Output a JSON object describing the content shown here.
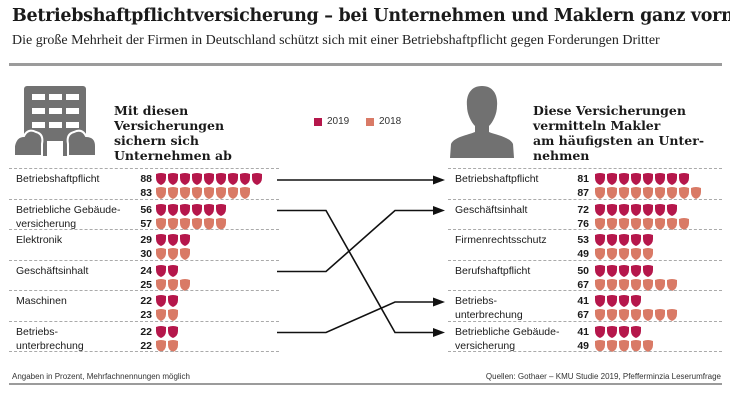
{
  "title": "Betriebshaftpflichtversicherung – bei Unternehmen und Maklern ganz vorn",
  "subtitle": "Die große Mehrheit der Firmen in Deutschland schützt sich mit einer Betriebshaftpflicht gegen Forderungen Dritter",
  "left_heading": [
    "Mit diesen",
    "Versicherungen",
    "sichern sich",
    "Unternehmen ab"
  ],
  "right_heading": [
    "Diese Versicherungen",
    "vermitteln Makler",
    "am häufigsten an Unter-",
    "nehmen"
  ],
  "icons": {
    "left": "office-building-icon",
    "right": "person-silhouette-icon",
    "marker": "shield-icon"
  },
  "colors": {
    "y2019": "#b5174b",
    "y2018": "#d97a66",
    "icon_gray": "#717171"
  },
  "footer_left": "Angaben in Prozent, Mehrfachnennungen möglich",
  "footer_right": "Quellen: Gothaer – KMU Studie 2019, Pfefferminzia Leserumfrage",
  "chart_data": {
    "type": "pictogram",
    "unit": "percent",
    "icon_value": 10,
    "legend": [
      {
        "label": "2019",
        "color": "#b5174b"
      },
      {
        "label": "2018",
        "color": "#d97a66"
      }
    ],
    "groups": [
      {
        "name": "unternehmen",
        "heading": "Mit diesen Versicherungen sichern sich Unternehmen ab",
        "rows": [
          {
            "label": [
              "Betriebshaftpflicht"
            ],
            "v2019": 88,
            "v2018": 83
          },
          {
            "label": [
              "Betriebliche Gebäude-",
              "versicherung"
            ],
            "v2019": 56,
            "v2018": 57
          },
          {
            "label": [
              "Elektronik"
            ],
            "v2019": 29,
            "v2018": 30
          },
          {
            "label": [
              "Geschäftsinhalt"
            ],
            "v2019": 24,
            "v2018": 25
          },
          {
            "label": [
              "Maschinen"
            ],
            "v2019": 22,
            "v2018": 23
          },
          {
            "label": [
              "Betriebs-",
              "unterbrechung"
            ],
            "v2019": 22,
            "v2018": 22
          }
        ]
      },
      {
        "name": "makler",
        "heading": "Diese Versicherungen vermitteln Makler am häufigsten an Unternehmen",
        "rows": [
          {
            "label": [
              "Betriebshaftpflicht"
            ],
            "v2019": 81,
            "v2018": 87
          },
          {
            "label": [
              "Geschäftsinhalt"
            ],
            "v2019": 72,
            "v2018": 76
          },
          {
            "label": [
              "Firmenrechtsschutz"
            ],
            "v2019": 53,
            "v2018": 49
          },
          {
            "label": [
              "Berufshaftpflicht"
            ],
            "v2019": 50,
            "v2018": 67
          },
          {
            "label": [
              "Betriebs-",
              "unterbrechung"
            ],
            "v2019": 41,
            "v2018": 67
          },
          {
            "label": [
              "Betriebliche Gebäude-",
              "versicherung"
            ],
            "v2019": 41,
            "v2018": 49
          }
        ]
      }
    ],
    "links": [
      {
        "from": "Betriebshaftpflicht",
        "to": "Betriebshaftpflicht"
      },
      {
        "from": "Betriebliche Gebäudeversicherung",
        "to": "Betriebliche Gebäudeversicherung"
      },
      {
        "from": "Geschäftsinhalt",
        "to": "Geschäftsinhalt"
      },
      {
        "from": "Betriebsunterbrechung",
        "to": "Betriebsunterbrechung"
      }
    ]
  }
}
